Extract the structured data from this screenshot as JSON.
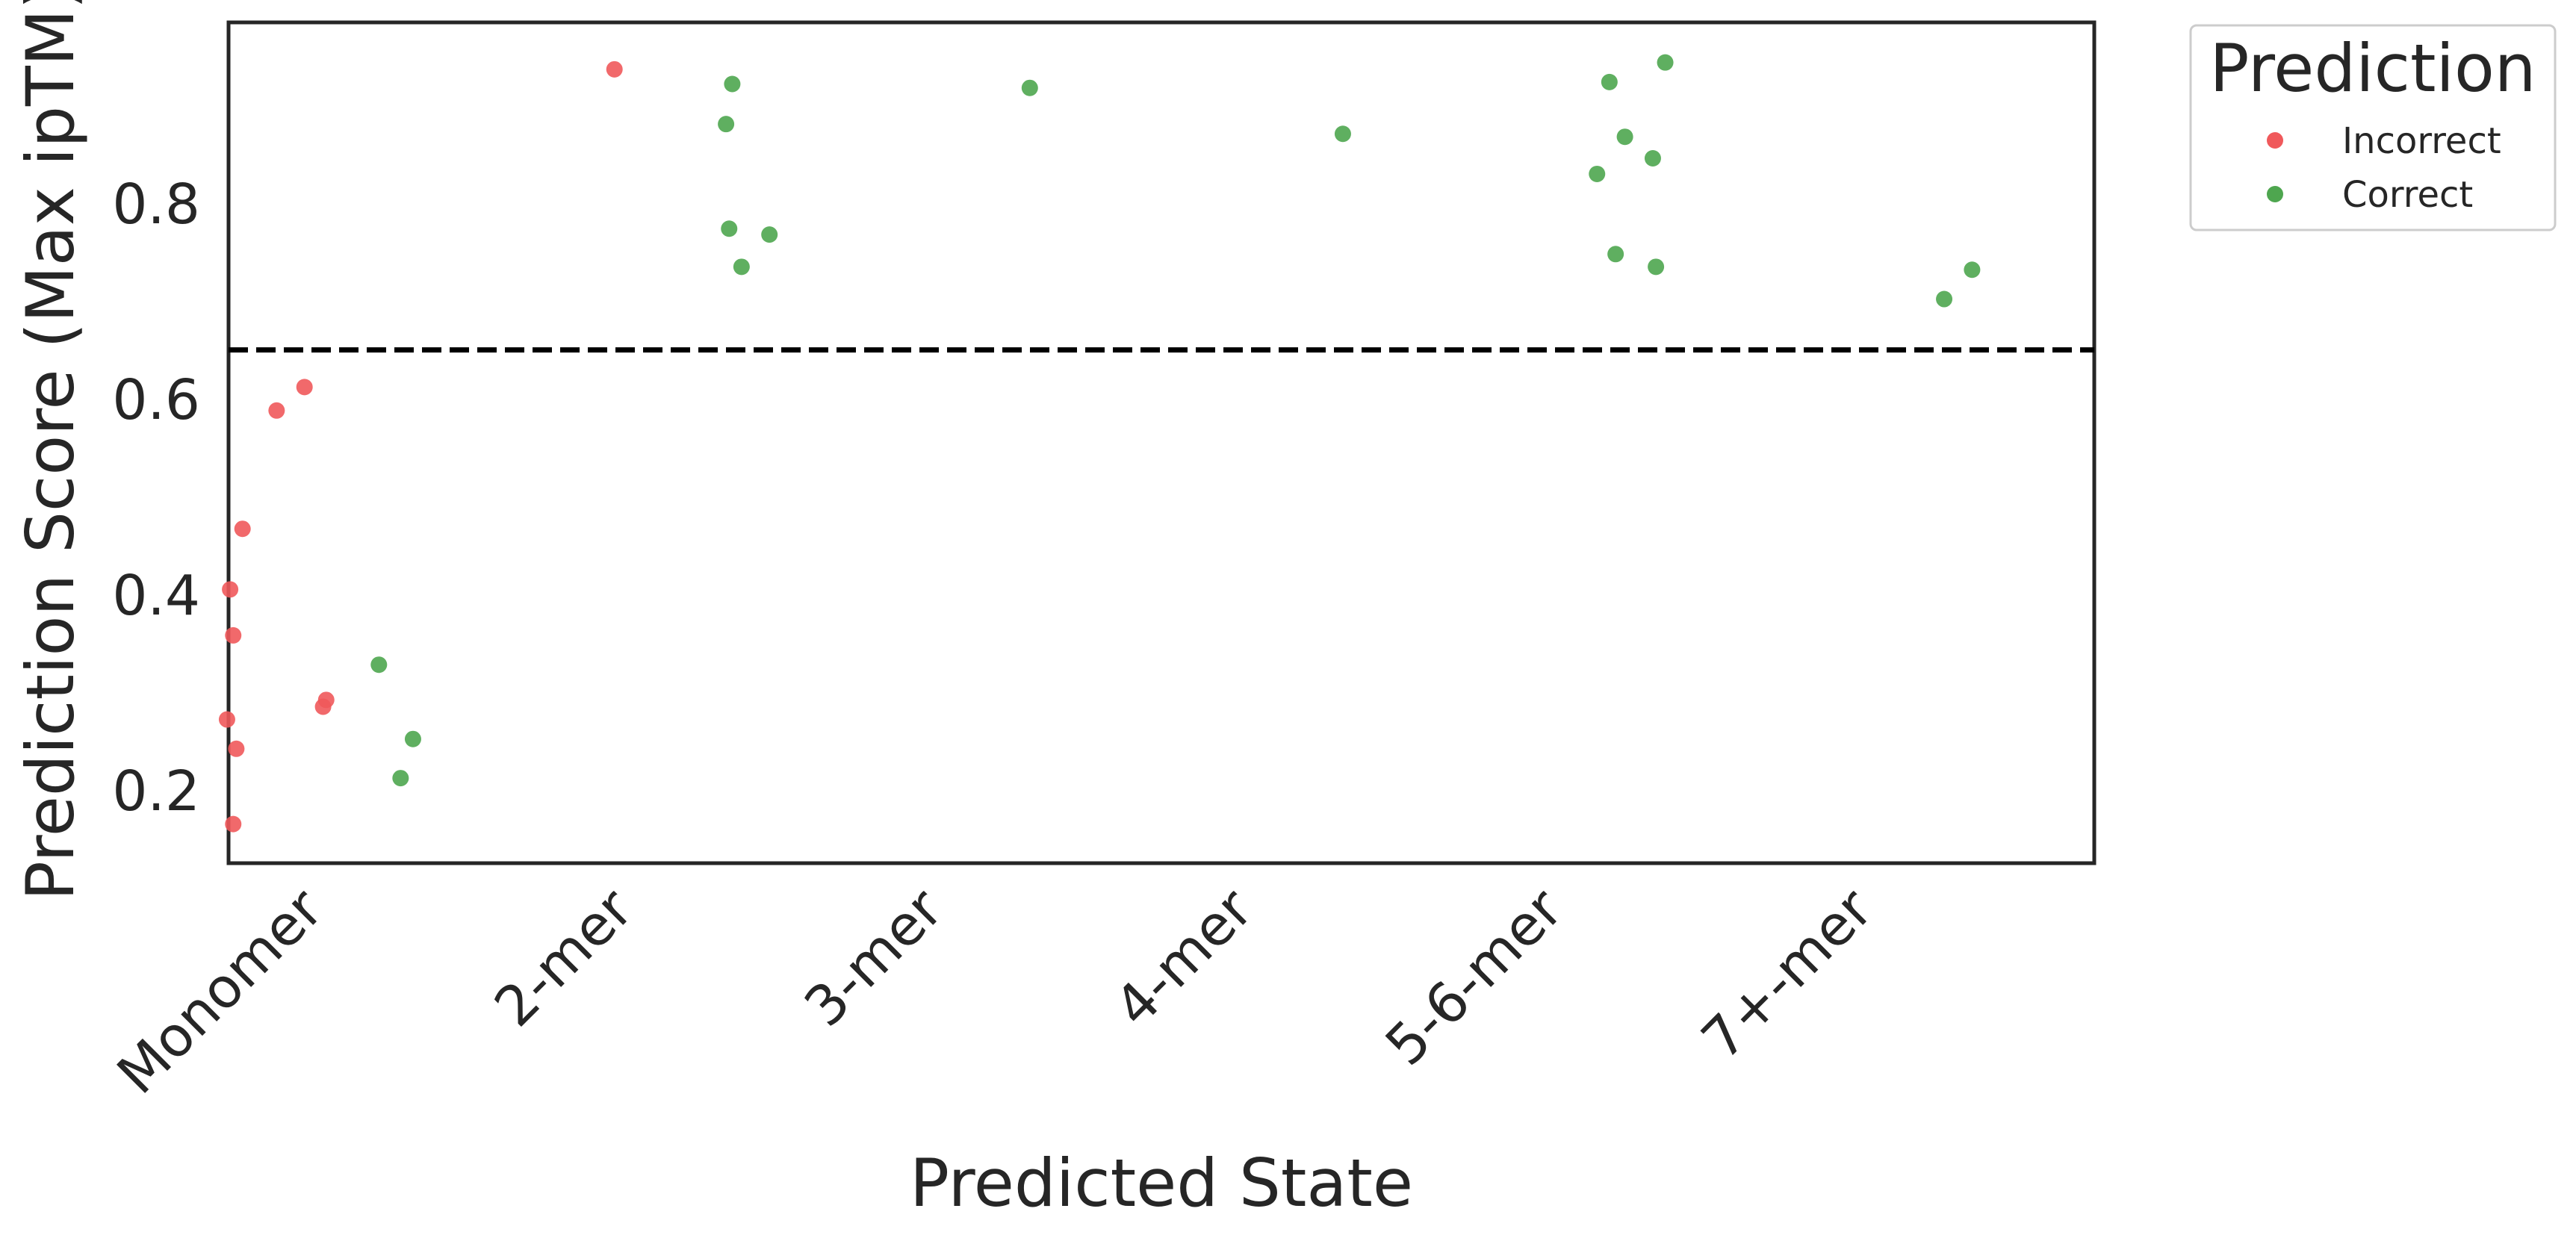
{
  "chart_data": {
    "type": "scatter",
    "title": "",
    "xlabel": "Predicted State",
    "ylabel": "Prediction Score (Max ipTM)",
    "categories": [
      "Monomer",
      "2-mer",
      "3-mer",
      "4-mer",
      "5-6-mer",
      "7+-mer"
    ],
    "ylim": [
      0.125,
      0.985
    ],
    "yticks": [
      0.2,
      0.4,
      0.6,
      0.8
    ],
    "ytick_labels": [
      "0.2",
      "0.4",
      "0.6",
      "0.8"
    ],
    "threshold": 0.65,
    "threshold_style": "dashed",
    "grid": false,
    "legend": {
      "title": "Prediction",
      "placement": "outside-top-right"
    },
    "series": [
      {
        "name": "Incorrect",
        "color": "#f0595b",
        "points": [
          {
            "category": "Monomer",
            "jitter": -0.02,
            "y": 0.612
          },
          {
            "category": "Monomer",
            "jitter": -0.11,
            "y": 0.588
          },
          {
            "category": "Monomer",
            "jitter": -0.22,
            "y": 0.467
          },
          {
            "category": "Monomer",
            "jitter": -0.26,
            "y": 0.405
          },
          {
            "category": "Monomer",
            "jitter": -0.25,
            "y": 0.358
          },
          {
            "category": "Monomer",
            "jitter": 0.05,
            "y": 0.292
          },
          {
            "category": "Monomer",
            "jitter": 0.04,
            "y": 0.285
          },
          {
            "category": "Monomer",
            "jitter": -0.27,
            "y": 0.272
          },
          {
            "category": "Monomer",
            "jitter": -0.24,
            "y": 0.242
          },
          {
            "category": "Monomer",
            "jitter": -0.25,
            "y": 0.165
          },
          {
            "category": "2-mer",
            "jitter": -0.02,
            "y": 0.937
          }
        ]
      },
      {
        "name": "Correct",
        "color": "#4ea64f",
        "points": [
          {
            "category": "Monomer",
            "jitter": 0.22,
            "y": 0.328
          },
          {
            "category": "Monomer",
            "jitter": 0.33,
            "y": 0.252
          },
          {
            "category": "Monomer",
            "jitter": 0.29,
            "y": 0.212
          },
          {
            "category": "2-mer",
            "jitter": 0.36,
            "y": 0.922
          },
          {
            "category": "2-mer",
            "jitter": 0.34,
            "y": 0.881
          },
          {
            "category": "2-mer",
            "jitter": 0.35,
            "y": 0.774
          },
          {
            "category": "2-mer",
            "jitter": 0.48,
            "y": 0.768
          },
          {
            "category": "2-mer",
            "jitter": 0.39,
            "y": 0.735
          },
          {
            "category": "3-mer",
            "jitter": 0.32,
            "y": 0.918
          },
          {
            "category": "4-mer",
            "jitter": 0.33,
            "y": 0.871
          },
          {
            "category": "5-6-mer",
            "jitter": 0.37,
            "y": 0.944
          },
          {
            "category": "5-6-mer",
            "jitter": 0.19,
            "y": 0.924
          },
          {
            "category": "5-6-mer",
            "jitter": 0.24,
            "y": 0.868
          },
          {
            "category": "5-6-mer",
            "jitter": 0.33,
            "y": 0.846
          },
          {
            "category": "5-6-mer",
            "jitter": 0.15,
            "y": 0.83
          },
          {
            "category": "5-6-mer",
            "jitter": 0.21,
            "y": 0.748
          },
          {
            "category": "5-6-mer",
            "jitter": 0.34,
            "y": 0.735
          },
          {
            "category": "7+-mer",
            "jitter": 0.36,
            "y": 0.732
          },
          {
            "category": "7+-mer",
            "jitter": 0.27,
            "y": 0.702
          }
        ]
      }
    ]
  }
}
